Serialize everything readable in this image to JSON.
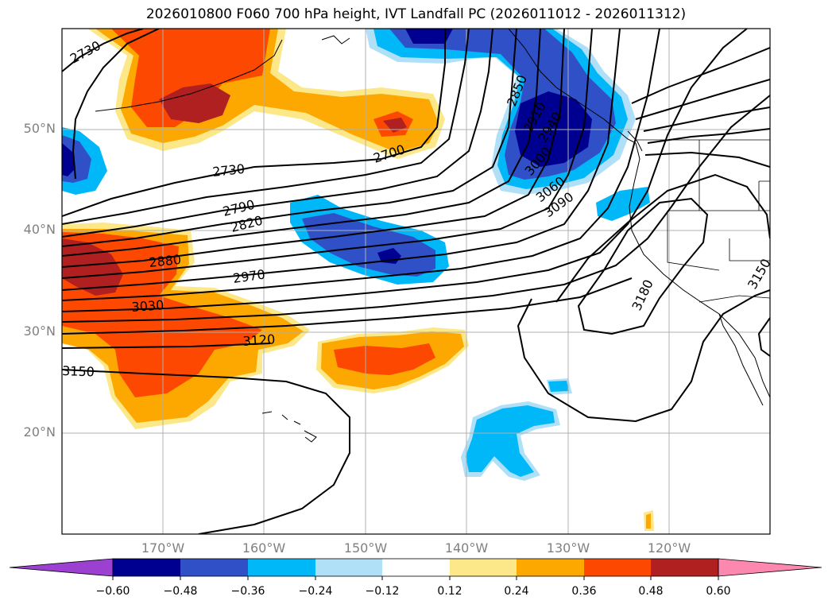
{
  "title": "2026010800 F060 700 hPa height, IVT Landfall PC (2026011012 - 2026011312)",
  "lat_ticks": [
    "50°N",
    "40°N",
    "30°N",
    "20°N"
  ],
  "lon_ticks": [
    "170°W",
    "160°W",
    "150°W",
    "140°W",
    "130°W",
    "120°W"
  ],
  "contour_labels": [
    "2730",
    "2700",
    "2730",
    "2790",
    "2820",
    "2880",
    "2970",
    "3030",
    "3120",
    "3150",
    "2850",
    "2910",
    "2940",
    "3000",
    "3060",
    "3090",
    "3180",
    "3150"
  ],
  "colorbar": {
    "ticks": [
      "−0.60",
      "−0.48",
      "−0.36",
      "−0.24",
      "−0.12",
      "0.12",
      "0.24",
      "0.36",
      "0.48",
      "0.60"
    ],
    "colors": [
      "#9b40d0",
      "#000090",
      "#3050c8",
      "#00b8f8",
      "#b0e0f8",
      "#ffffff",
      "#fce888",
      "#fca800",
      "#fc4800",
      "#b02020",
      "#fc88b0"
    ]
  }
}
